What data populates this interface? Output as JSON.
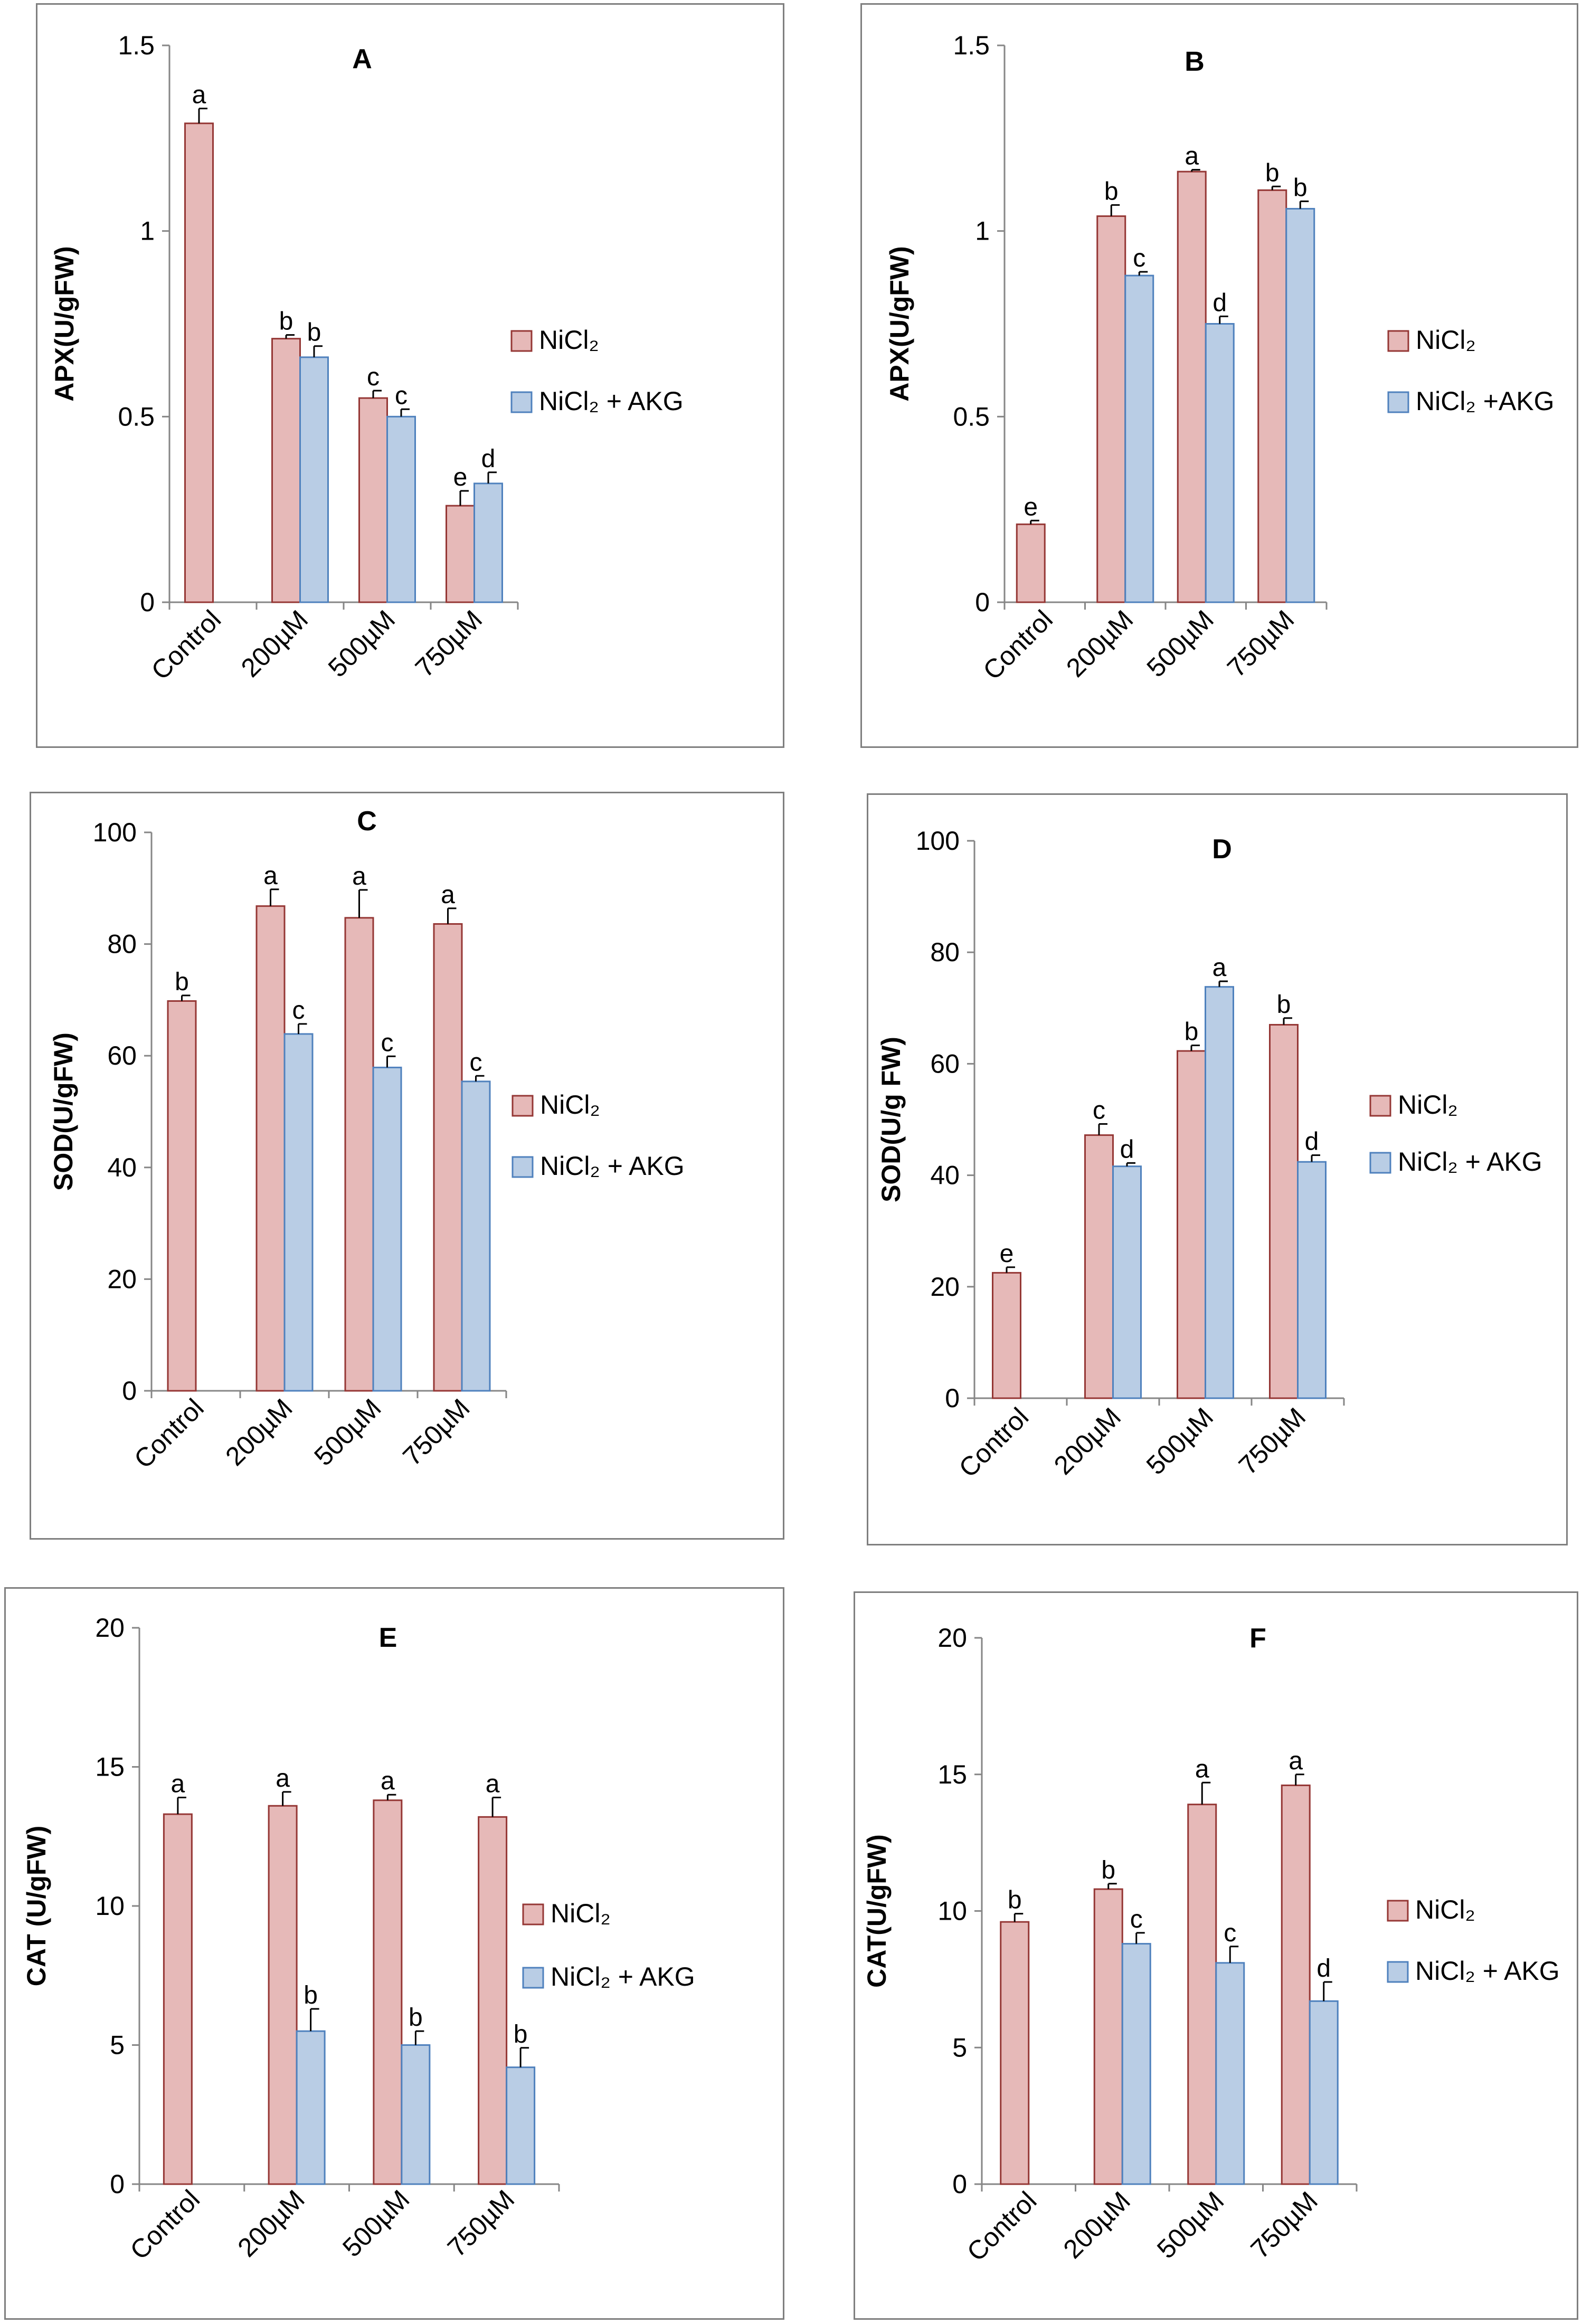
{
  "colors": {
    "nicl2_fill": "#e6b9b8",
    "nicl2_stroke": "#953735",
    "akg_fill": "#b9cde5",
    "akg_stroke": "#4f81bd",
    "axis": "#868686",
    "text": "#000000"
  },
  "chart_data": [
    {
      "type": "bar",
      "title": "A",
      "ylabel": "APX(U/gFW)",
      "ylim": [
        0,
        1.5
      ],
      "ytick_step": 0.5,
      "yticks": [
        "0",
        "0.5",
        "1",
        "1.5"
      ],
      "categories": [
        "Control",
        "200µM",
        "500µM",
        "750µM"
      ],
      "legend": [
        "NiCl₂",
        "NiCl₂ + AKG"
      ],
      "series": [
        {
          "name": "NiCl₂",
          "values": [
            1.29,
            0.71,
            0.55,
            0.26
          ],
          "errors": [
            0.04,
            0.01,
            0.02,
            0.04
          ],
          "letters": [
            "a",
            "b",
            "c",
            "e"
          ]
        },
        {
          "name": "NiCl₂ + AKG",
          "values": [
            null,
            0.66,
            0.5,
            0.32
          ],
          "errors": [
            null,
            0.03,
            0.02,
            0.03
          ],
          "letters": [
            null,
            "b",
            "c",
            "d"
          ]
        }
      ]
    },
    {
      "type": "bar",
      "title": "B",
      "ylabel": "APX(U/gFW)",
      "ylim": [
        0,
        1.5
      ],
      "ytick_step": 0.5,
      "yticks": [
        "0",
        "0.5",
        "1",
        "1.5"
      ],
      "categories": [
        "Control",
        "200µM",
        "500µM",
        "750µM"
      ],
      "legend": [
        "NiCl₂",
        "NiCl₂ +AKG"
      ],
      "series": [
        {
          "name": "NiCl₂",
          "values": [
            0.21,
            1.04,
            1.16,
            1.11
          ],
          "errors": [
            0.01,
            0.03,
            0.005,
            0.01
          ],
          "letters": [
            "e",
            "b",
            "a",
            "b"
          ]
        },
        {
          "name": "NiCl₂ +AKG",
          "values": [
            null,
            0.88,
            0.75,
            1.06
          ],
          "errors": [
            null,
            0.01,
            0.02,
            0.02
          ],
          "letters": [
            null,
            "c",
            "d",
            "b"
          ]
        }
      ]
    },
    {
      "type": "bar",
      "title": "C",
      "ylabel": "SOD(U/gFW)",
      "ylim": [
        0,
        100
      ],
      "ytick_step": 20,
      "yticks": [
        "0",
        "20",
        "40",
        "60",
        "80",
        "100"
      ],
      "categories": [
        "Control",
        "200µM",
        "500µM",
        "750µM"
      ],
      "legend": [
        "NiCl₂",
        "NiCl₂ + AKG"
      ],
      "series": [
        {
          "name": "NiCl₂",
          "values": [
            69.8,
            86.8,
            84.7,
            83.6
          ],
          "errors": [
            1.0,
            3.0,
            5.0,
            2.8
          ],
          "letters": [
            "b",
            "a",
            "a",
            "a"
          ]
        },
        {
          "name": "NiCl₂ + AKG",
          "values": [
            null,
            63.9,
            57.9,
            55.4
          ],
          "errors": [
            null,
            1.8,
            2.0,
            1.0
          ],
          "letters": [
            null,
            "c",
            "c",
            "c"
          ]
        }
      ]
    },
    {
      "type": "bar",
      "title": "D",
      "ylabel": "SOD(U/g FW)",
      "ylim": [
        0,
        100
      ],
      "ytick_step": 20,
      "yticks": [
        "0",
        "20",
        "40",
        "60",
        "80",
        "100"
      ],
      "categories": [
        "Control",
        "200µM",
        "500µM",
        "750µM"
      ],
      "legend": [
        "NiCl₂",
        "NiCl₂ + AKG"
      ],
      "series": [
        {
          "name": "NiCl₂",
          "values": [
            22.5,
            47.2,
            62.3,
            67.0
          ],
          "errors": [
            1.0,
            2.0,
            1.0,
            1.2
          ],
          "letters": [
            "e",
            "c",
            "b",
            "b"
          ]
        },
        {
          "name": "NiCl₂ + AKG",
          "values": [
            null,
            41.6,
            73.8,
            42.4
          ],
          "errors": [
            null,
            0.6,
            1.0,
            1.2
          ],
          "letters": [
            null,
            "d",
            "a",
            "d"
          ]
        }
      ]
    },
    {
      "type": "bar",
      "title": "E",
      "ylabel": "CAT (U/gFW)",
      "ylim": [
        0,
        20
      ],
      "ytick_step": 5,
      "yticks": [
        "0",
        "5",
        "10",
        "15",
        "20"
      ],
      "categories": [
        "Control",
        "200µM",
        "500µM",
        "750µM"
      ],
      "legend": [
        "NiCl₂",
        "NiCl₂ + AKG"
      ],
      "series": [
        {
          "name": "NiCl₂",
          "values": [
            13.3,
            13.6,
            13.8,
            13.2
          ],
          "errors": [
            0.6,
            0.5,
            0.2,
            0.7
          ],
          "letters": [
            "a",
            "a",
            "a",
            "a"
          ]
        },
        {
          "name": "NiCl₂ + AKG",
          "values": [
            null,
            5.5,
            5.0,
            4.2
          ],
          "errors": [
            null,
            0.8,
            0.5,
            0.7
          ],
          "letters": [
            null,
            "b",
            "b",
            "b"
          ]
        }
      ]
    },
    {
      "type": "bar",
      "title": "F",
      "ylabel": "CAT(U/gFW)",
      "ylim": [
        0,
        20
      ],
      "ytick_step": 5,
      "yticks": [
        "0",
        "5",
        "10",
        "15",
        "20"
      ],
      "categories": [
        "Control",
        "200µM",
        "500µM",
        "750µM"
      ],
      "legend": [
        "NiCl₂",
        "NiCl₂ + AKG"
      ],
      "series": [
        {
          "name": "NiCl₂",
          "values": [
            9.6,
            10.8,
            13.9,
            14.6
          ],
          "errors": [
            0.3,
            0.2,
            0.8,
            0.4
          ],
          "letters": [
            "b",
            "b",
            "a",
            "a"
          ]
        },
        {
          "name": "NiCl₂ + AKG",
          "values": [
            null,
            8.8,
            8.1,
            6.7
          ],
          "errors": [
            null,
            0.4,
            0.6,
            0.7
          ],
          "letters": [
            null,
            "c",
            "c",
            "d"
          ]
        }
      ]
    }
  ]
}
